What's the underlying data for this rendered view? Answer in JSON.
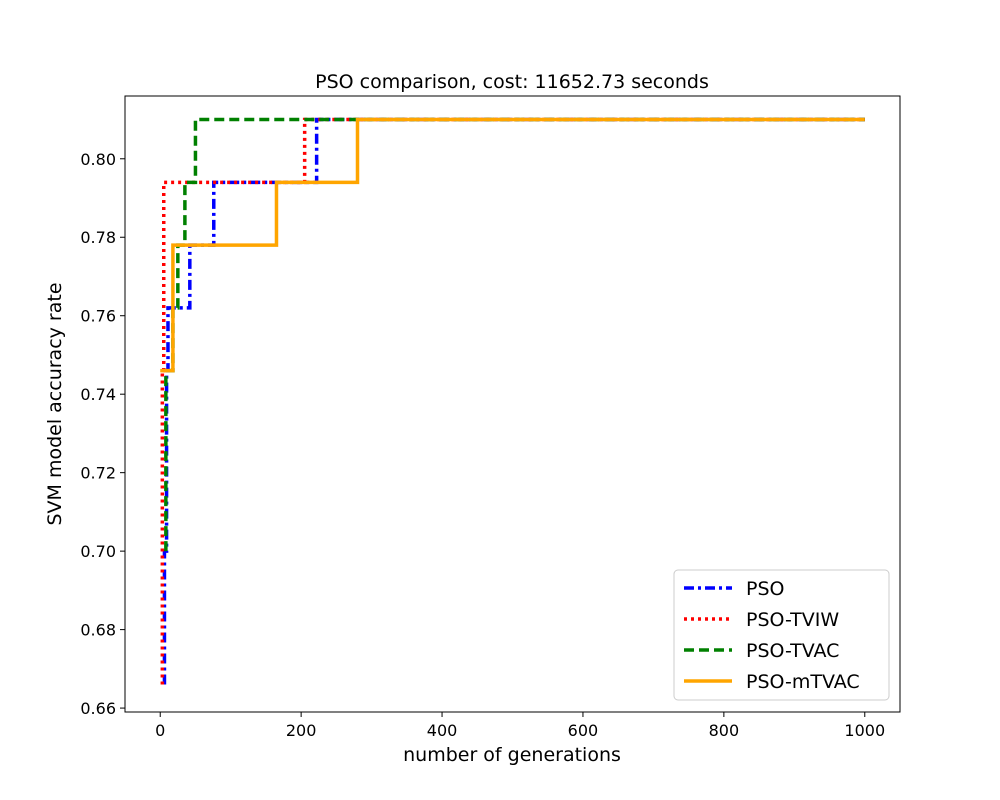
{
  "chart_data": {
    "type": "line",
    "title": "PSO comparison, cost: 11652.73 seconds",
    "xlabel": "number of generations",
    "ylabel": "SVM model accuracy rate",
    "xlim": [
      -50,
      1050
    ],
    "ylim": [
      0.659,
      0.816
    ],
    "xticks": [
      0,
      200,
      400,
      600,
      800,
      1000
    ],
    "yticks": [
      0.66,
      0.68,
      0.7,
      0.72,
      0.74,
      0.76,
      0.78,
      0.8
    ],
    "xtick_labels": [
      "0",
      "200",
      "400",
      "600",
      "800",
      "1000"
    ],
    "ytick_labels": [
      "0.66",
      "0.68",
      "0.70",
      "0.72",
      "0.74",
      "0.76",
      "0.78",
      "0.80"
    ],
    "grid": false,
    "legend_position": "lower-right",
    "series": [
      {
        "name": "PSO",
        "color": "#0000ff",
        "dash": "dashdot",
        "x": [
          6,
          6,
          9,
          9,
          11,
          11,
          15,
          15,
          28,
          28,
          42,
          42,
          76,
          76,
          222,
          222,
          1000
        ],
        "y": [
          0.666,
          0.7,
          0.7,
          0.746,
          0.746,
          0.762,
          0.762,
          0.762,
          0.762,
          0.762,
          0.762,
          0.778,
          0.778,
          0.794,
          0.794,
          0.81,
          0.81
        ]
      },
      {
        "name": "PSO-TVIW",
        "color": "#ff0000",
        "dash": "dotted",
        "x": [
          3,
          3,
          5,
          5,
          205,
          205,
          1000
        ],
        "y": [
          0.666,
          0.746,
          0.746,
          0.794,
          0.794,
          0.81,
          0.81
        ]
      },
      {
        "name": "PSO-TVAC",
        "color": "#008000",
        "dash": "dashed",
        "x": [
          8,
          8,
          18,
          18,
          25,
          25,
          35,
          35,
          50,
          50,
          1000
        ],
        "y": [
          0.7,
          0.746,
          0.746,
          0.762,
          0.762,
          0.778,
          0.778,
          0.794,
          0.794,
          0.81,
          0.81
        ]
      },
      {
        "name": "PSO-mTVAC",
        "color": "#ffa500",
        "dash": "solid",
        "x": [
          0,
          18,
          18,
          165,
          165,
          280,
          280,
          1000
        ],
        "y": [
          0.746,
          0.746,
          0.778,
          0.778,
          0.794,
          0.794,
          0.81,
          0.81
        ]
      }
    ]
  }
}
